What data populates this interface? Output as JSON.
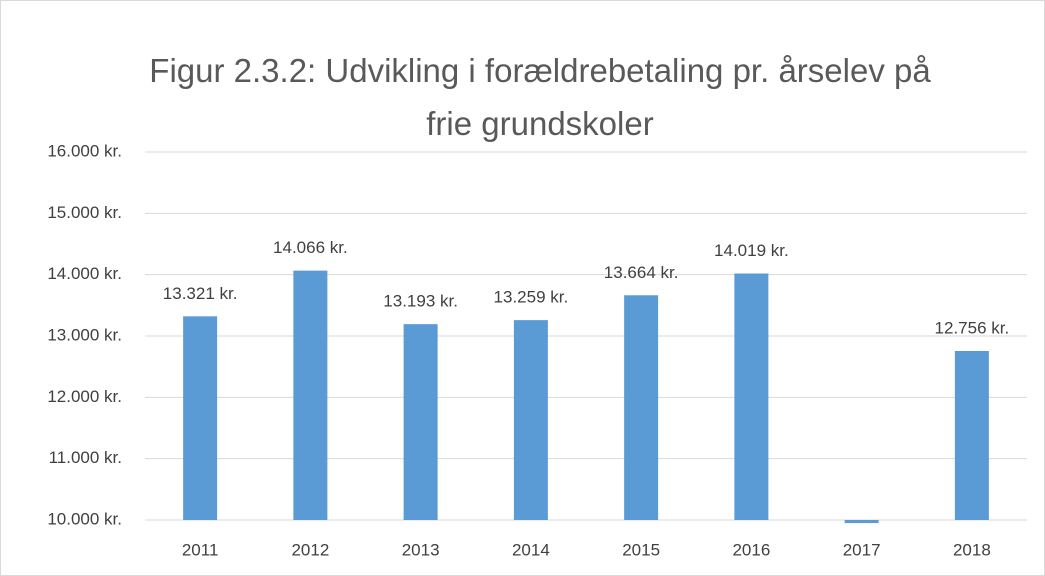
{
  "chart_data": {
    "type": "bar",
    "title": "Figur 2.3.2: Udvikling i forældrebetaling pr. årselev på frie grundskoler",
    "categories": [
      "2011",
      "2012",
      "2013",
      "2014",
      "2015",
      "2016",
      "2017",
      "2018"
    ],
    "values": [
      13321,
      14066,
      13193,
      13259,
      13664,
      14019,
      9950,
      12756
    ],
    "value_labels": [
      "13.321 kr.",
      "14.066 kr.",
      "13.193 kr.",
      "13.259 kr.",
      "13.664 kr.",
      "14.019 kr.",
      null,
      "12.756 kr."
    ],
    "color": "#5b9bd5",
    "ylim": [
      10000,
      16000
    ],
    "yticks": [
      {
        "value": 10000,
        "label": "10.000 kr."
      },
      {
        "value": 11000,
        "label": "11.000 kr."
      },
      {
        "value": 12000,
        "label": "12.000 kr."
      },
      {
        "value": 13000,
        "label": "13.000 kr."
      },
      {
        "value": 14000,
        "label": "14.000 kr."
      },
      {
        "value": 15000,
        "label": "15.000 kr."
      },
      {
        "value": 16000,
        "label": "16.000 kr."
      }
    ],
    "grid": true
  }
}
